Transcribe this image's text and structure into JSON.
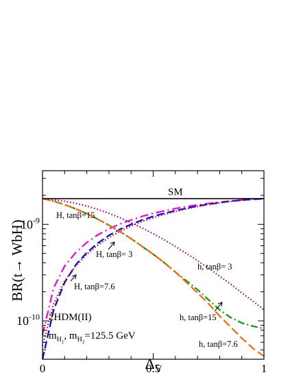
{
  "chart_data": {
    "type": "line",
    "xlabel": "Δ",
    "xlabel_sub": "V",
    "ylabel": "BR(t→ WbH)",
    "y_scale": "log",
    "xlim": [
      0,
      1
    ],
    "ylim": [
      4e-11,
      3.6e-09
    ],
    "x_ticks": [
      {
        "v": 0,
        "label": "0"
      },
      {
        "v": 0.5,
        "label": "0.5"
      },
      {
        "v": 1,
        "label": "1"
      }
    ],
    "y_ticks": [
      {
        "v": 1e-10,
        "base": "10",
        "exp": "-10"
      },
      {
        "v": 1e-09,
        "base": "10",
        "exp": "-9"
      }
    ],
    "sm": {
      "label": "SM",
      "value": 1.85e-09
    },
    "series": [
      {
        "name": "H, tanβ=15",
        "color": "#ff00cc",
        "dash": "12,5,2,5",
        "width": 2.2,
        "x": [
          0,
          0.05,
          0.1,
          0.15,
          0.2,
          0.25,
          0.3,
          0.35,
          0.4,
          0.45,
          0.5,
          0.55,
          0.6,
          0.65,
          0.7,
          0.75,
          0.8,
          0.85,
          0.9,
          0.95,
          1
        ],
        "y": [
          7.2e-11,
          2.2e-10,
          3.7e-10,
          5.1e-10,
          6.5e-10,
          7.8e-10,
          9e-10,
          1.01e-09,
          1.11e-09,
          1.21e-09,
          1.3e-09,
          1.38e-09,
          1.46e-09,
          1.53e-09,
          1.59e-09,
          1.65e-09,
          1.7e-09,
          1.75e-09,
          1.79e-09,
          1.82e-09,
          1.85e-09
        ]
      },
      {
        "name": "H, tanβ= 3",
        "color": "#0000ff",
        "dash": "11,5",
        "width": 2.2,
        "x": [
          0,
          0.05,
          0.1,
          0.15,
          0.2,
          0.25,
          0.3,
          0.35,
          0.4,
          0.45,
          0.5,
          0.55,
          0.6,
          0.65,
          0.7,
          0.75,
          0.8,
          0.85,
          0.9,
          0.95,
          1
        ],
        "y": [
          4e-11,
          1.3e-10,
          2.5e-10,
          3.8e-10,
          5.1e-10,
          6.4e-10,
          7.7e-10,
          8.9e-10,
          1e-09,
          1.11e-09,
          1.21e-09,
          1.3e-09,
          1.39e-09,
          1.47e-09,
          1.55e-09,
          1.62e-09,
          1.68e-09,
          1.74e-09,
          1.78e-09,
          1.82e-09,
          1.85e-09
        ]
      },
      {
        "name": "H, tanβ=7.6",
        "color": "#cc0000",
        "dash": "1.5,3",
        "width": 2.2,
        "x": [
          0,
          0.05,
          0.1,
          0.15,
          0.2,
          0.25,
          0.3,
          0.35,
          0.4,
          0.45,
          0.5,
          0.55,
          0.6,
          0.65,
          0.7,
          0.75,
          0.8,
          0.85,
          0.9,
          0.95,
          1
        ],
        "y": [
          5.5e-11,
          1.5e-10,
          2.6e-10,
          3.7e-10,
          4.9e-10,
          6.1e-10,
          7.3e-10,
          8.5e-10,
          9.6e-10,
          1.07e-09,
          1.17e-09,
          1.27e-09,
          1.36e-09,
          1.45e-09,
          1.53e-09,
          1.6e-09,
          1.67e-09,
          1.73e-09,
          1.78e-09,
          1.82e-09,
          1.85e-09
        ]
      },
      {
        "name": "h, tanβ= 3",
        "color": "#800080",
        "dash": "1.5,3",
        "width": 2.2,
        "x": [
          0,
          0.05,
          0.1,
          0.15,
          0.2,
          0.25,
          0.3,
          0.35,
          0.4,
          0.45,
          0.5,
          0.55,
          0.6,
          0.65,
          0.7,
          0.75,
          0.8,
          0.85,
          0.9,
          0.95,
          1
        ],
        "y": [
          1.85e-09,
          1.8e-09,
          1.74e-09,
          1.65e-09,
          1.55e-09,
          1.43e-09,
          1.3e-09,
          1.17e-09,
          1.04e-09,
          9.2e-10,
          8e-10,
          6.9e-10,
          5.9e-10,
          5e-10,
          4.2e-10,
          3.5e-10,
          2.9e-10,
          2.4e-10,
          1.95e-10,
          1.6e-10,
          1.3e-10
        ]
      },
      {
        "name": "h, tanβ=15",
        "color": "#009900",
        "dash": "10,4,2,4",
        "width": 2.2,
        "x": [
          0,
          0.05,
          0.1,
          0.15,
          0.2,
          0.25,
          0.3,
          0.35,
          0.4,
          0.45,
          0.5,
          0.55,
          0.6,
          0.65,
          0.7,
          0.75,
          0.8,
          0.85,
          0.9,
          0.95,
          1
        ],
        "y": [
          1.85e-09,
          1.74e-09,
          1.6e-09,
          1.45e-09,
          1.29e-09,
          1.13e-09,
          9.8e-10,
          8.4e-10,
          7.1e-10,
          5.9e-10,
          4.9e-10,
          4e-10,
          3.2e-10,
          2.6e-10,
          2.1e-10,
          1.65e-10,
          1.3e-10,
          1.08e-10,
          9.5e-11,
          8.8e-11,
          8.3e-11
        ]
      },
      {
        "name": "h, tanβ=7.6",
        "color": "#ff6600",
        "dash": "12,5",
        "width": 2.2,
        "x": [
          0,
          0.05,
          0.1,
          0.15,
          0.2,
          0.25,
          0.3,
          0.35,
          0.4,
          0.45,
          0.5,
          0.55,
          0.6,
          0.65,
          0.7,
          0.75,
          0.8,
          0.85,
          0.9,
          0.95,
          1
        ],
        "y": [
          1.85e-09,
          1.74e-09,
          1.6e-09,
          1.45e-09,
          1.29e-09,
          1.13e-09,
          9.8e-10,
          8.4e-10,
          7.1e-10,
          5.9e-10,
          4.9e-10,
          4e-10,
          3.2e-10,
          2.5e-10,
          1.95e-10,
          1.5e-10,
          1.12e-10,
          8.6e-11,
          6.6e-11,
          5.2e-11,
          4.3e-11
        ]
      }
    ],
    "annotations": {
      "H15": "H, tanβ=15",
      "H3": "H, tanβ= 3",
      "H76": "H, tanβ=7.6",
      "h3": "h, tanβ= 3",
      "h15": "h, tanβ=15",
      "h76": "h, tanβ=7.6"
    },
    "model_label": "2HDM(II)",
    "mass_label": {
      "m1": "m",
      "m1_sub": "H",
      "m1_subsub": "1",
      "sep": ", ",
      "m2": "m",
      "m2_sub": "H",
      "m2_subsub": "2",
      "value": "=125.5 GeV"
    }
  }
}
